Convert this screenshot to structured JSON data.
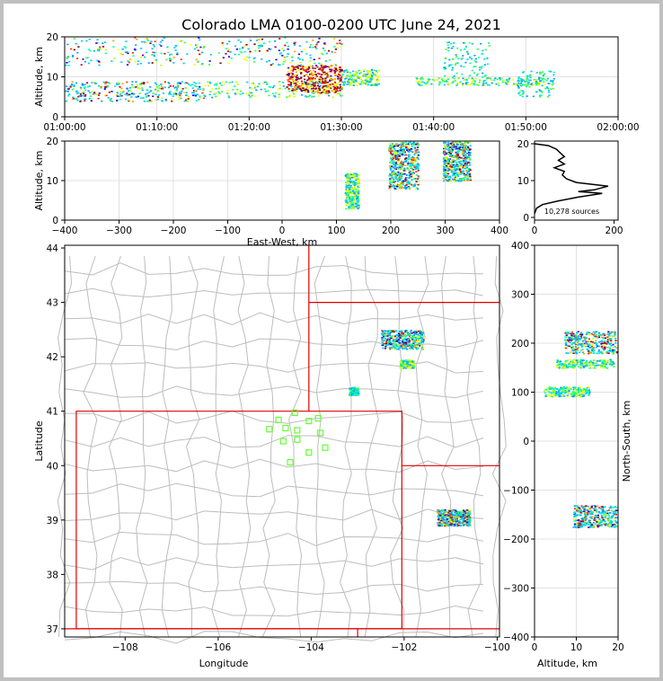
{
  "title": "Colorado LMA 0100-0200 UTC June 24, 2021",
  "chart_data": [
    {
      "id": "time-height",
      "type": "scatter",
      "xlabel": "",
      "ylabel": "Altitude, km",
      "x_ticks": [
        "01:00:00",
        "01:10:00",
        "01:20:00",
        "01:30:00",
        "01:40:00",
        "01:50:00",
        "02:00:00"
      ],
      "xlim_minutes": [
        0,
        60
      ],
      "ylim": [
        0,
        20
      ],
      "y_ticks": [
        0,
        10,
        20
      ],
      "grid": true,
      "point_clusters": [
        {
          "x_minutes": [
            0,
            30
          ],
          "altitude_km": [
            13,
            20
          ],
          "density": "high"
        },
        {
          "x_minutes": [
            0,
            15
          ],
          "altitude_km": [
            4,
            9
          ],
          "density": "high"
        },
        {
          "x_minutes": [
            15,
            30
          ],
          "altitude_km": [
            5,
            9
          ],
          "density": "medium"
        },
        {
          "x_minutes": [
            24,
            30
          ],
          "altitude_km": [
            6,
            13
          ],
          "density": "very-high"
        },
        {
          "x_minutes": [
            30,
            34
          ],
          "altitude_km": [
            8,
            12
          ],
          "density": "medium"
        },
        {
          "x_minutes": [
            38,
            52
          ],
          "altitude_km": [
            8,
            10
          ],
          "density": "medium"
        },
        {
          "x_minutes": [
            41,
            46
          ],
          "altitude_km": [
            10,
            19
          ],
          "density": "low"
        },
        {
          "x_minutes": [
            49,
            53
          ],
          "altitude_km": [
            5,
            12
          ],
          "density": "low"
        }
      ]
    },
    {
      "id": "ew-height",
      "type": "scatter",
      "xlabel": "East-West, km",
      "ylabel": "Altitude, km",
      "xlim": [
        -400,
        400
      ],
      "x_ticks": [
        -400,
        -300,
        -200,
        -100,
        0,
        100,
        200,
        300,
        400
      ],
      "ylim": [
        0,
        20
      ],
      "y_ticks": [
        0,
        10,
        20
      ],
      "grid": true,
      "point_clusters": [
        {
          "x_km": [
            115,
            140
          ],
          "altitude_km": [
            3,
            12
          ],
          "density": "medium"
        },
        {
          "x_km": [
            195,
            250
          ],
          "altitude_km": [
            8,
            20
          ],
          "density": "high"
        },
        {
          "x_km": [
            295,
            345
          ],
          "altitude_km": [
            10,
            20
          ],
          "density": "high"
        }
      ]
    },
    {
      "id": "altitude-histogram",
      "type": "line",
      "xlabel": "",
      "ylabel": "",
      "xlim": [
        0,
        210
      ],
      "x_ticks": [
        0,
        200
      ],
      "ylim": [
        0,
        20
      ],
      "y_ticks": [
        0,
        10,
        20
      ],
      "annotation": "10,278 sources",
      "profile": [
        {
          "altitude_km": 1,
          "count": 0
        },
        {
          "altitude_km": 2.5,
          "count": 5
        },
        {
          "altitude_km": 3.5,
          "count": 20
        },
        {
          "altitude_km": 4.5,
          "count": 60
        },
        {
          "altitude_km": 5.5,
          "count": 110
        },
        {
          "altitude_km": 6.5,
          "count": 170
        },
        {
          "altitude_km": 7,
          "count": 110
        },
        {
          "altitude_km": 7.5,
          "count": 150
        },
        {
          "altitude_km": 8.5,
          "count": 185
        },
        {
          "altitude_km": 9.5,
          "count": 105
        },
        {
          "altitude_km": 10.5,
          "count": 80
        },
        {
          "altitude_km": 11.5,
          "count": 70
        },
        {
          "altitude_km": 12.5,
          "count": 75
        },
        {
          "altitude_km": 13.5,
          "count": 50
        },
        {
          "altitude_km": 14.5,
          "count": 75
        },
        {
          "altitude_km": 15.5,
          "count": 60
        },
        {
          "altitude_km": 16.5,
          "count": 75
        },
        {
          "altitude_km": 17.5,
          "count": 65
        },
        {
          "altitude_km": 18.5,
          "count": 55
        },
        {
          "altitude_km": 19.5,
          "count": 35
        },
        {
          "altitude_km": 20,
          "count": 0
        }
      ]
    },
    {
      "id": "plan-view",
      "type": "scatter",
      "xlabel": "Longitude",
      "ylabel": "Latitude",
      "xlim": [
        -109.3,
        -99.95
      ],
      "x_ticks": [
        -108,
        -106,
        -104,
        -102,
        -100
      ],
      "ylim": [
        36.85,
        44.05
      ],
      "y_ticks": [
        37,
        38,
        39,
        40,
        41,
        42,
        43,
        44
      ],
      "point_clusters": [
        {
          "lon": [
            -102.5,
            -101.6
          ],
          "lat": [
            42.15,
            42.5
          ],
          "density": "high"
        },
        {
          "lon": [
            -102.1,
            -101.8
          ],
          "lat": [
            41.8,
            41.95
          ],
          "density": "medium"
        },
        {
          "lon": [
            -103.2,
            -103.0
          ],
          "lat": [
            41.3,
            41.45
          ],
          "density": "low"
        },
        {
          "lon": [
            -101.3,
            -100.6
          ],
          "lat": [
            38.9,
            39.2
          ],
          "density": "high"
        }
      ],
      "stations": [
        {
          "lon": -104.35,
          "lat": 40.97
        },
        {
          "lon": -103.85,
          "lat": 40.87
        },
        {
          "lon": -104.7,
          "lat": 40.84
        },
        {
          "lon": -104.05,
          "lat": 40.82
        },
        {
          "lon": -104.9,
          "lat": 40.67
        },
        {
          "lon": -104.55,
          "lat": 40.69
        },
        {
          "lon": -104.3,
          "lat": 40.65
        },
        {
          "lon": -103.8,
          "lat": 40.6
        },
        {
          "lon": -104.6,
          "lat": 40.45
        },
        {
          "lon": -104.3,
          "lat": 40.48
        },
        {
          "lon": -103.7,
          "lat": 40.33
        },
        {
          "lon": -104.05,
          "lat": 40.24
        },
        {
          "lon": -104.45,
          "lat": 40.06
        }
      ]
    },
    {
      "id": "ns-height",
      "type": "scatter",
      "xlabel": "Altitude, km",
      "ylabel": "North-South, km",
      "xlim": [
        0,
        20
      ],
      "x_ticks": [
        0,
        10,
        20
      ],
      "ylim": [
        -400,
        400
      ],
      "y_ticks": [
        -400,
        -300,
        -200,
        -100,
        0,
        100,
        200,
        300,
        400
      ],
      "grid": true,
      "point_clusters": [
        {
          "altitude_km": [
            7,
            20
          ],
          "ns_km": [
            180,
            225
          ],
          "density": "high"
        },
        {
          "altitude_km": [
            5,
            19
          ],
          "ns_km": [
            150,
            168
          ],
          "density": "medium"
        },
        {
          "altitude_km": [
            2,
            13
          ],
          "ns_km": [
            92,
            112
          ],
          "density": "medium"
        },
        {
          "altitude_km": [
            9,
            20
          ],
          "ns_km": [
            -175,
            -130
          ],
          "density": "high"
        }
      ]
    }
  ]
}
